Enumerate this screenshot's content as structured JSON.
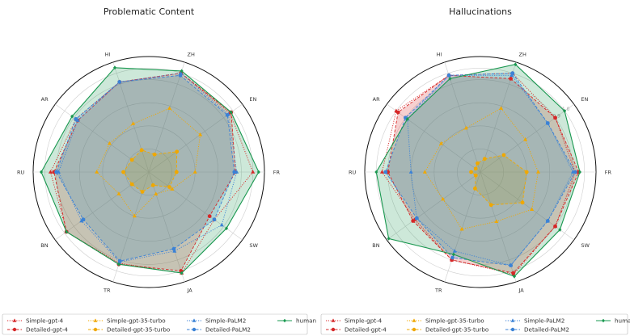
{
  "chart_data": [
    {
      "type": "radar",
      "title": "Problematic Content",
      "axes": [
        "ZH",
        "EN",
        "FR",
        "SW",
        "JA",
        "TR",
        "BN",
        "RU",
        "AR",
        "HI"
      ],
      "radial_range": [
        0,
        1
      ],
      "radial_ticks": [],
      "grid": true,
      "legend_position": "bottom",
      "series": [
        {
          "name": "Simple-gpt-4",
          "color": "#d62728",
          "style": "dotted",
          "marker": "triangle",
          "fill": false,
          "values": [
            0.9,
            0.87,
            0.9,
            0.7,
            0.92,
            0.83,
            0.88,
            0.85,
            0.78,
            0.82
          ]
        },
        {
          "name": "Detailed-gpt-4",
          "color": "#d62728",
          "style": "dashed",
          "marker": "circle",
          "fill": true,
          "values": [
            0.9,
            0.88,
            0.75,
            0.65,
            0.9,
            0.84,
            0.88,
            0.82,
            0.76,
            0.82
          ]
        },
        {
          "name": "Simple-gpt-35-turbo",
          "color": "#f0a800",
          "style": "dotted",
          "marker": "triangle",
          "fill": false,
          "values": [
            0.58,
            0.55,
            0.4,
            0.25,
            0.2,
            0.4,
            0.32,
            0.45,
            0.42,
            0.44
          ]
        },
        {
          "name": "Detailed-gpt-35-turbo",
          "color": "#f0a800",
          "style": "dashed",
          "marker": "circle",
          "fill": true,
          "values": [
            0.16,
            0.3,
            0.24,
            0.22,
            0.12,
            0.18,
            0.18,
            0.22,
            0.18,
            0.2
          ]
        },
        {
          "name": "Simple-PaLM2",
          "color": "#3b82d6",
          "style": "dotted",
          "marker": "triangle",
          "fill": false,
          "values": [
            0.9,
            0.85,
            0.76,
            0.78,
            0.72,
            0.82,
            0.72,
            0.78,
            0.76,
            0.82
          ]
        },
        {
          "name": "Detailed-PaLM2",
          "color": "#3b82d6",
          "style": "dashed",
          "marker": "circle",
          "fill": true,
          "values": [
            0.88,
            0.84,
            0.74,
            0.7,
            0.7,
            0.81,
            0.7,
            0.8,
            0.78,
            0.82
          ]
        },
        {
          "name": "human",
          "color": "#1a9850",
          "style": "solid",
          "marker": "diamond",
          "fill": true,
          "values": [
            0.92,
            0.88,
            0.95,
            0.83,
            0.92,
            0.84,
            0.88,
            0.93,
            0.82,
            0.95
          ]
        }
      ]
    },
    {
      "type": "radar",
      "title": "Hallucinations",
      "axes": [
        "ZH",
        "EN",
        "FR",
        "SW",
        "JA",
        "TR",
        "BN",
        "RU",
        "AR",
        "HI"
      ],
      "radial_range": [
        0,
        1
      ],
      "radial_ticks": [
        "0.9",
        "1.0"
      ],
      "grid": true,
      "legend_position": "bottom",
      "series": [
        {
          "name": "Simple-gpt-4",
          "color": "#d62728",
          "style": "dotted",
          "marker": "triangle",
          "fill": false,
          "values": [
            0.9,
            0.8,
            0.82,
            0.8,
            0.93,
            0.8,
            0.7,
            0.85,
            0.9,
            0.88
          ]
        },
        {
          "name": "Detailed-gpt-4",
          "color": "#d62728",
          "style": "dashed",
          "marker": "circle",
          "fill": true,
          "values": [
            0.85,
            0.8,
            0.85,
            0.8,
            0.92,
            0.8,
            0.72,
            0.8,
            0.88,
            0.88
          ]
        },
        {
          "name": "Simple-gpt-35-turbo",
          "color": "#f0a800",
          "style": "dotted",
          "marker": "triangle",
          "fill": false,
          "values": [
            0.58,
            0.48,
            0.5,
            0.55,
            0.45,
            0.52,
            0.4,
            0.48,
            0.42,
            0.4
          ]
        },
        {
          "name": "Detailed-gpt-35-turbo",
          "color": "#f0a800",
          "style": "dashed",
          "marker": "circle",
          "fill": true,
          "values": [
            0.12,
            0.25,
            0.4,
            0.45,
            0.3,
            0.15,
            0.05,
            0.08,
            0.05,
            0.08
          ]
        },
        {
          "name": "Simple-PaLM2",
          "color": "#3b82d6",
          "style": "dotted",
          "marker": "triangle",
          "fill": false,
          "values": [
            0.88,
            0.72,
            0.8,
            0.72,
            0.85,
            0.72,
            0.68,
            0.6,
            0.78,
            0.88
          ]
        },
        {
          "name": "Detailed-PaLM2",
          "color": "#3b82d6",
          "style": "dashed",
          "marker": "circle",
          "fill": true,
          "values": [
            0.9,
            0.72,
            0.82,
            0.72,
            0.85,
            0.78,
            0.68,
            0.82,
            0.8,
            0.88
          ]
        },
        {
          "name": "human",
          "color": "#1a9850",
          "style": "solid",
          "marker": "diamond",
          "fill": true,
          "values": [
            0.98,
            0.9,
            0.86,
            0.85,
            0.95,
            0.75,
            0.98,
            0.9,
            0.78,
            0.85
          ]
        }
      ]
    }
  ]
}
